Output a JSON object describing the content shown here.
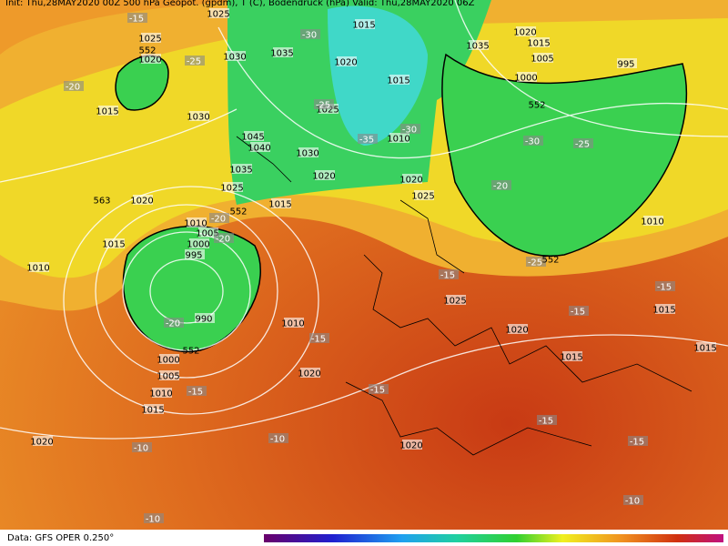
{
  "header": {
    "text": "Init: Thu,28MAY2020 00Z   500 hPa Geopot. (gpdm), T (C), Bodendruck (hPa)   Valid: Thu,28MAY2020 06Z"
  },
  "footer": {
    "source": "Data: GFS OPER 0.250°"
  },
  "isobar_labels": [
    "1025",
    "1025",
    "1020",
    "1015",
    "1030",
    "1030",
    "1035",
    "1015",
    "1020",
    "1025",
    "1045",
    "1040",
    "1030",
    "1035",
    "1025",
    "1015",
    "1020",
    "1020",
    "1025",
    "1010",
    "1015",
    "1035",
    "1020",
    "1015",
    "1005",
    "1000",
    "995",
    "1020",
    "1010",
    "1005",
    "1000",
    "995",
    "990",
    "1000",
    "1005",
    "1010",
    "1015",
    "1010",
    "1015",
    "1010",
    "1020",
    "1025",
    "1020",
    "1015",
    "1010",
    "1015",
    "1015",
    "1020",
    "1020"
  ],
  "temperature_labels": [
    "-15",
    "-25",
    "-20",
    "-30",
    "-35",
    "-30",
    "-25",
    "-30",
    "-25",
    "-20",
    "-20",
    "-20",
    "-20",
    "-25",
    "-15",
    "-15",
    "-15",
    "-15",
    "-15",
    "-15",
    "-15",
    "-10",
    "-10",
    "-15",
    "-10",
    "-10"
  ],
  "geopotential_labels": [
    "552",
    "552",
    "552",
    "552",
    "552",
    "563"
  ]
}
